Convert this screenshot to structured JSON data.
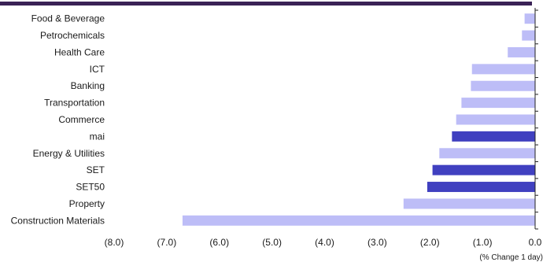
{
  "colors": {
    "top_bar": "#3a2256",
    "bar_default": "#bdbdf7",
    "bar_highlight": "#4040c0",
    "axis": "#222222"
  },
  "chart_data": {
    "type": "bar",
    "orientation": "horizontal",
    "categories": [
      "Food & Beverage",
      "Petrochemicals",
      "Health Care",
      "ICT",
      "Banking",
      "Transportation",
      "Commerce",
      "mai",
      "Energy & Utilities",
      "SET",
      "SET50",
      "Property",
      "Construction Materials"
    ],
    "values": [
      -0.2,
      -0.25,
      -0.52,
      -1.2,
      -1.22,
      -1.4,
      -1.5,
      -1.58,
      -1.82,
      -1.95,
      -2.05,
      -2.5,
      -6.7
    ],
    "highlighted": [
      "mai",
      "SET",
      "SET50"
    ],
    "xlim": [
      -8.0,
      0.0
    ],
    "xticks": [
      -8,
      -7,
      -6,
      -5,
      -4,
      -3,
      -2,
      -1,
      0
    ],
    "xtick_labels": [
      "(8.0)",
      "(7.0)",
      "(6.0)",
      "(5.0)",
      "(4.0)",
      "(3.0)",
      "(2.0)",
      "(1.0)",
      "0.0"
    ],
    "xlabel": "(% Change 1 day)",
    "grid": false,
    "legend": "none"
  }
}
